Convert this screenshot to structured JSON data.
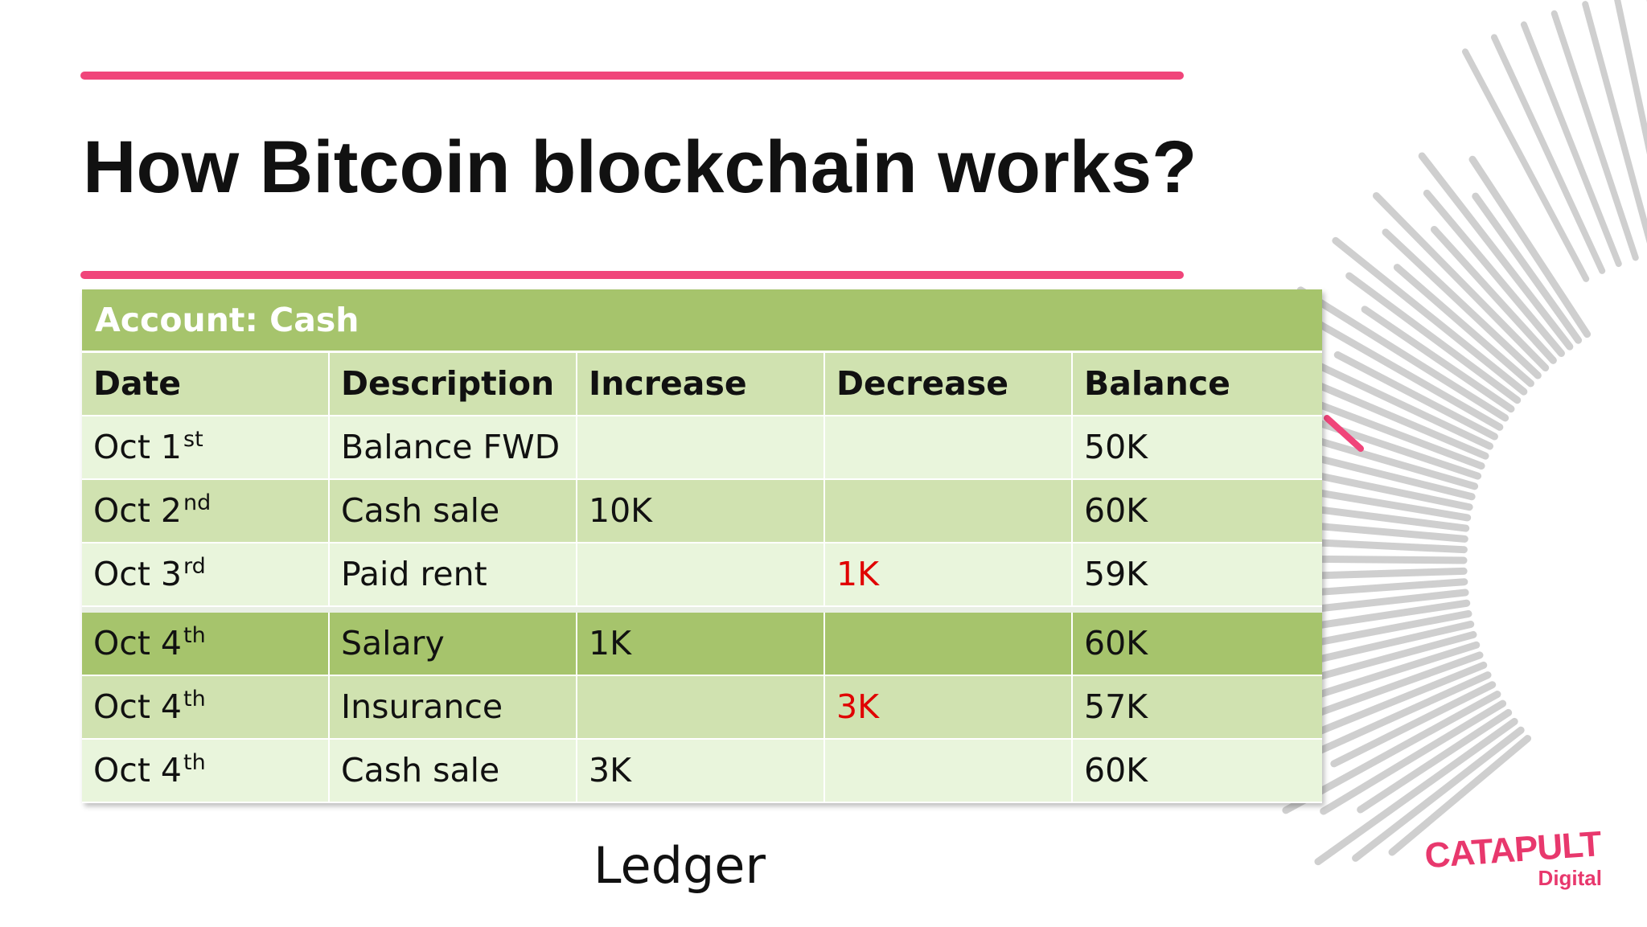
{
  "slide": {
    "title": "How Bitcoin blockchain works?",
    "caption": "Ledger"
  },
  "ledger": {
    "account_title": "Account: Cash",
    "columns": [
      "Date",
      "Description",
      "Increase",
      "Decrease",
      "Balance"
    ],
    "rows": [
      {
        "day": "Oct 1",
        "ordinal": "st",
        "description": "Balance FWD",
        "increase": "",
        "decrease": "",
        "balance": "50K"
      },
      {
        "day": "Oct 2",
        "ordinal": "nd",
        "description": "Cash sale",
        "increase": "10K",
        "decrease": "",
        "balance": "60K"
      },
      {
        "day": "Oct 3",
        "ordinal": "rd",
        "description": "Paid rent",
        "increase": "",
        "decrease": "1K",
        "balance": "59K"
      },
      {
        "day": "Oct 4",
        "ordinal": "th",
        "description": "Salary",
        "increase": "1K",
        "decrease": "",
        "balance": "60K"
      },
      {
        "day": "Oct 4",
        "ordinal": "th",
        "description": "Insurance",
        "increase": "",
        "decrease": "3K",
        "balance": "57K"
      },
      {
        "day": "Oct 4",
        "ordinal": "th",
        "description": "Cash sale",
        "increase": "3K",
        "decrease": "",
        "balance": "60K"
      }
    ]
  },
  "logo": {
    "word_1": "CATAPULT",
    "word_2": "Digital"
  },
  "colors": {
    "accent_pink": "#f0457a",
    "table_header_green": "#a6c46c",
    "row_light": "#e9f5dc",
    "row_mid": "#d0e2b0",
    "decrease_red": "#e00000",
    "burst_gray": "#cfcfcf"
  }
}
